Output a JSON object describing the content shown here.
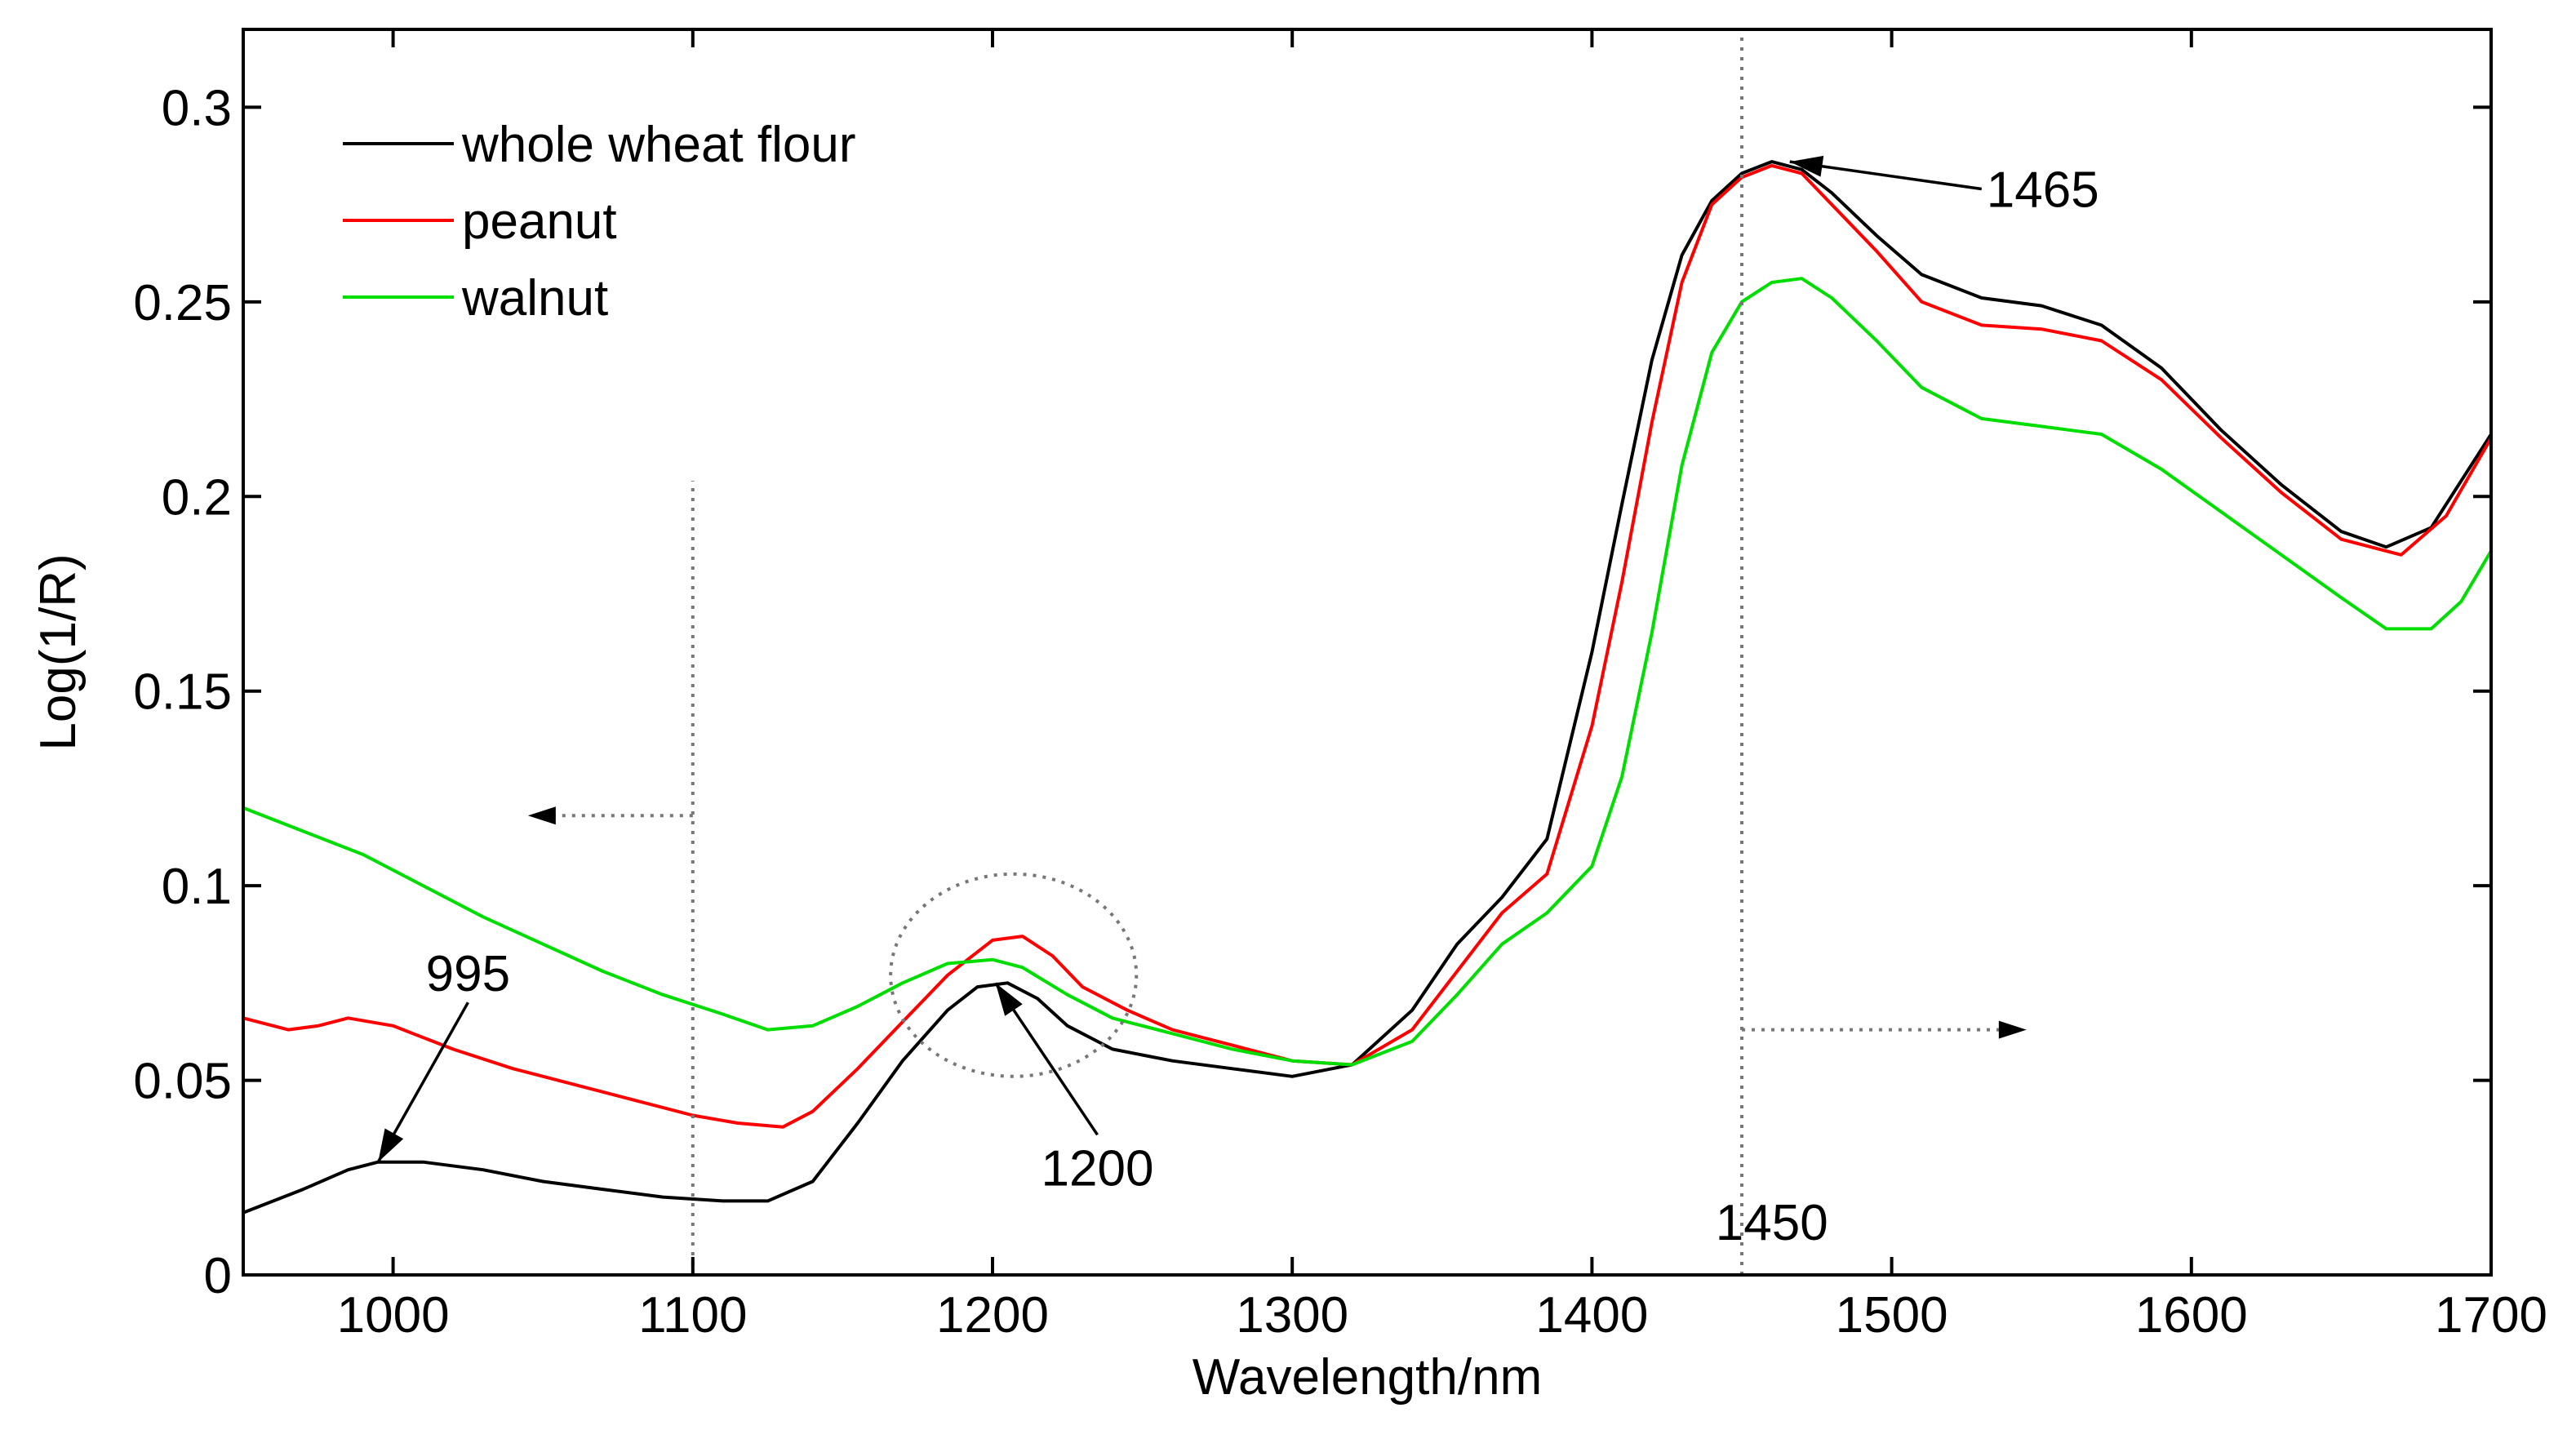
{
  "chart_data": {
    "type": "line",
    "title": "",
    "xlabel": "Wavelength/nm",
    "ylabel": "Log(1/R)",
    "xlim": [
      950,
      1700
    ],
    "ylim": [
      0,
      0.32
    ],
    "xticks": [
      1000,
      1100,
      1200,
      1300,
      1400,
      1500,
      1600,
      1700
    ],
    "xtick_labels": [
      "1000",
      "1100",
      "1200",
      "1300",
      "1400",
      "1500",
      "1600",
      "1700"
    ],
    "yticks": [
      0,
      0.05,
      0.1,
      0.15,
      0.2,
      0.25,
      0.3
    ],
    "ytick_labels": [
      "0",
      "0.05",
      "0.1",
      "0.15",
      "0.2",
      "0.25",
      "0.3"
    ],
    "grid": false,
    "legend_position": "top-left",
    "series": [
      {
        "name": "whole wheat flour",
        "color": "#000000",
        "x": [
          950,
          970,
          985,
          995,
          1010,
          1030,
          1050,
          1070,
          1090,
          1110,
          1125,
          1140,
          1155,
          1170,
          1185,
          1195,
          1205,
          1215,
          1225,
          1240,
          1260,
          1280,
          1300,
          1320,
          1340,
          1355,
          1370,
          1385,
          1400,
          1410,
          1420,
          1430,
          1440,
          1450,
          1460,
          1470,
          1480,
          1495,
          1510,
          1530,
          1550,
          1570,
          1590,
          1610,
          1630,
          1650,
          1665,
          1680,
          1690,
          1700
        ],
        "values": [
          0.016,
          0.022,
          0.027,
          0.029,
          0.029,
          0.027,
          0.024,
          0.022,
          0.02,
          0.019,
          0.019,
          0.024,
          0.039,
          0.055,
          0.068,
          0.074,
          0.075,
          0.071,
          0.064,
          0.058,
          0.055,
          0.053,
          0.051,
          0.054,
          0.068,
          0.085,
          0.097,
          0.112,
          0.16,
          0.198,
          0.235,
          0.262,
          0.276,
          0.283,
          0.286,
          0.284,
          0.278,
          0.267,
          0.257,
          0.251,
          0.249,
          0.244,
          0.233,
          0.217,
          0.203,
          0.191,
          0.187,
          0.192,
          0.204,
          0.216
        ]
      },
      {
        "name": "peanut",
        "color": "#ff0000",
        "x": [
          950,
          965,
          975,
          985,
          1000,
          1020,
          1040,
          1060,
          1080,
          1100,
          1115,
          1130,
          1140,
          1155,
          1170,
          1185,
          1200,
          1210,
          1220,
          1230,
          1245,
          1260,
          1280,
          1300,
          1320,
          1340,
          1355,
          1370,
          1385,
          1400,
          1410,
          1420,
          1430,
          1440,
          1450,
          1460,
          1470,
          1480,
          1495,
          1510,
          1530,
          1550,
          1570,
          1590,
          1610,
          1630,
          1650,
          1670,
          1685,
          1700
        ],
        "values": [
          0.066,
          0.063,
          0.064,
          0.066,
          0.064,
          0.058,
          0.053,
          0.049,
          0.045,
          0.041,
          0.039,
          0.038,
          0.042,
          0.053,
          0.065,
          0.077,
          0.086,
          0.087,
          0.082,
          0.074,
          0.068,
          0.063,
          0.059,
          0.055,
          0.054,
          0.063,
          0.078,
          0.093,
          0.103,
          0.141,
          0.178,
          0.219,
          0.255,
          0.275,
          0.282,
          0.285,
          0.283,
          0.275,
          0.263,
          0.25,
          0.244,
          0.243,
          0.24,
          0.23,
          0.215,
          0.201,
          0.189,
          0.185,
          0.195,
          0.215
        ]
      },
      {
        "name": "walnut",
        "color": "#00dd00",
        "x": [
          950,
          970,
          990,
          1010,
          1030,
          1050,
          1070,
          1090,
          1110,
          1125,
          1140,
          1155,
          1170,
          1185,
          1200,
          1210,
          1225,
          1240,
          1260,
          1280,
          1300,
          1320,
          1340,
          1355,
          1370,
          1385,
          1400,
          1410,
          1420,
          1430,
          1440,
          1450,
          1460,
          1470,
          1480,
          1495,
          1510,
          1530,
          1550,
          1570,
          1590,
          1610,
          1630,
          1650,
          1665,
          1680,
          1690,
          1700
        ],
        "values": [
          0.12,
          0.114,
          0.108,
          0.1,
          0.092,
          0.085,
          0.078,
          0.072,
          0.067,
          0.063,
          0.064,
          0.069,
          0.075,
          0.08,
          0.081,
          0.079,
          0.072,
          0.066,
          0.062,
          0.058,
          0.055,
          0.054,
          0.06,
          0.072,
          0.085,
          0.093,
          0.105,
          0.128,
          0.165,
          0.208,
          0.237,
          0.25,
          0.255,
          0.256,
          0.251,
          0.24,
          0.228,
          0.22,
          0.218,
          0.216,
          0.207,
          0.196,
          0.185,
          0.174,
          0.166,
          0.166,
          0.173,
          0.186
        ]
      }
    ],
    "reference_lines": [
      {
        "name": "ref-line-1100",
        "x": 1100,
        "y_from": 0.0,
        "y_to": 0.204
      },
      {
        "name": "ref-line-1450",
        "x": 1450,
        "y_from": 0.0,
        "y_to": 0.33
      }
    ],
    "annotations": [
      {
        "name": "peak-995",
        "text": "995",
        "tip_x": 995,
        "tip_y": 0.029,
        "label_x": 1025,
        "label_y": 0.07
      },
      {
        "name": "peak-1200",
        "text": "1200",
        "tip_x": 1201,
        "tip_y": 0.075,
        "label_x": 1235,
        "label_y": 0.036
      },
      {
        "name": "peak-1465",
        "text": "1465",
        "tip_x": 1466,
        "tip_y": 0.286,
        "label_x": 1530,
        "label_y": 0.279
      },
      {
        "name": "line-1450",
        "text": "1450",
        "label_x": 1460,
        "label_y": 0.009
      }
    ],
    "direction_arrows": [
      {
        "name": "left-region-arrow",
        "from_x": 1100,
        "to_x": 1045,
        "y": 0.118
      },
      {
        "name": "right-region-arrow",
        "from_x": 1450,
        "to_x": 1545,
        "y": 0.063
      }
    ],
    "highlight_circle": {
      "center_x": 1207,
      "center_y": 0.077,
      "radius_x": 41,
      "radius_y": 0.026
    }
  }
}
